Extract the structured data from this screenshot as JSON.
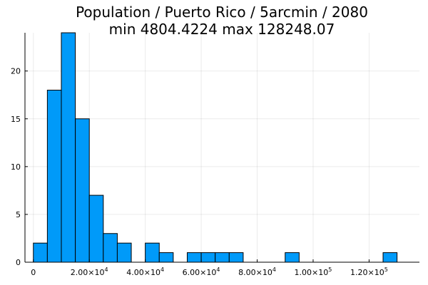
{
  "chart_data": {
    "type": "bar",
    "title": [
      "Population / Puerto Rico / 5arcmin / 2080",
      "min 4804.4224  max 128248.07"
    ],
    "xlabel": "",
    "ylabel": "",
    "bin_width": 5000,
    "bins": [
      {
        "start": 0,
        "count": 2
      },
      {
        "start": 5000,
        "count": 18
      },
      {
        "start": 10000,
        "count": 24
      },
      {
        "start": 15000,
        "count": 15
      },
      {
        "start": 20000,
        "count": 7
      },
      {
        "start": 25000,
        "count": 3
      },
      {
        "start": 30000,
        "count": 2
      },
      {
        "start": 35000,
        "count": 0
      },
      {
        "start": 40000,
        "count": 2
      },
      {
        "start": 45000,
        "count": 1
      },
      {
        "start": 50000,
        "count": 0
      },
      {
        "start": 55000,
        "count": 1
      },
      {
        "start": 60000,
        "count": 1
      },
      {
        "start": 65000,
        "count": 1
      },
      {
        "start": 70000,
        "count": 1
      },
      {
        "start": 75000,
        "count": 0
      },
      {
        "start": 80000,
        "count": 0
      },
      {
        "start": 85000,
        "count": 0
      },
      {
        "start": 90000,
        "count": 1
      },
      {
        "start": 95000,
        "count": 0
      },
      {
        "start": 100000,
        "count": 0
      },
      {
        "start": 105000,
        "count": 0
      },
      {
        "start": 110000,
        "count": 0
      },
      {
        "start": 115000,
        "count": 0
      },
      {
        "start": 120000,
        "count": 0
      },
      {
        "start": 125000,
        "count": 1
      }
    ],
    "xlim": [
      -3000,
      138000
    ],
    "ylim": [
      0,
      24
    ],
    "x_ticks": [
      {
        "value": 0,
        "base": "0",
        "exp": ""
      },
      {
        "value": 20000,
        "base": "2.00×10",
        "exp": "4"
      },
      {
        "value": 40000,
        "base": "4.00×10",
        "exp": "4"
      },
      {
        "value": 60000,
        "base": "6.00×10",
        "exp": "4"
      },
      {
        "value": 80000,
        "base": "8.00×10",
        "exp": "4"
      },
      {
        "value": 100000,
        "base": "1.00×10",
        "exp": "5"
      },
      {
        "value": 120000,
        "base": "1.20×10",
        "exp": "5"
      }
    ],
    "y_ticks": [
      0,
      5,
      10,
      15,
      20
    ],
    "grid": true,
    "legend": "none",
    "colors": {
      "bar": "#009af9",
      "bar_edge": "#000000"
    }
  }
}
